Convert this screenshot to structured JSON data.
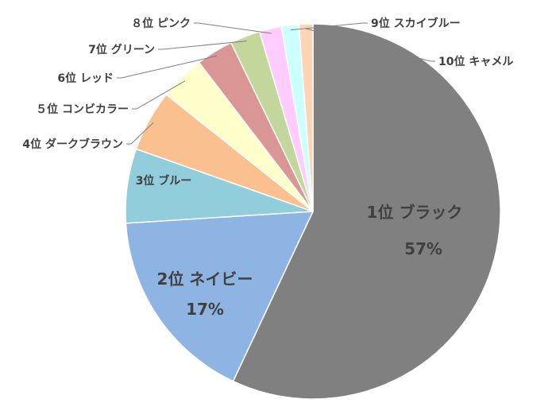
{
  "chart_data": {
    "type": "pie",
    "title": "",
    "slices": [
      {
        "rank": "1位",
        "name": "ブラック",
        "label": "1位 ブラック",
        "value": 57,
        "pct_label": "57%",
        "color": "#808080"
      },
      {
        "rank": "2位",
        "name": "ネイビー",
        "label": "2位 ネイビー",
        "value": 17,
        "pct_label": "17%",
        "color": "#8EB4E3"
      },
      {
        "rank": "3位",
        "name": "ブルー",
        "label": "3位 ブルー",
        "value": 6.4,
        "color": "#92CDDC"
      },
      {
        "rank": "4位",
        "name": "ダークブラウン",
        "label": "4位 ダークブラウン",
        "value": 5.3,
        "color": "#FAC090"
      },
      {
        "rank": "5位",
        "name": "コンピカラー",
        "label": "５位 コンビカラー",
        "value": 3.9,
        "color": "#FFFFCC"
      },
      {
        "rank": "6位",
        "name": "レッド",
        "label": "6位 レッド",
        "value": 3.2,
        "color": "#D99694"
      },
      {
        "rank": "7位",
        "name": "グリーン",
        "label": "7位 グリーン",
        "value": 2.6,
        "color": "#C3D69B"
      },
      {
        "rank": "8位",
        "name": "ピンク",
        "label": "８位 ピンク",
        "value": 1.9,
        "color": "#FFCCFF"
      },
      {
        "rank": "9位",
        "name": "スカイブルー",
        "label": "9位 スカイブルー",
        "value": 1.5,
        "color": "#CCFFFF"
      },
      {
        "rank": "10位",
        "name": "キャメル",
        "label": "10位 キャメル",
        "value": 1.2,
        "color": "#FBD5B5"
      }
    ],
    "legend": "none"
  }
}
